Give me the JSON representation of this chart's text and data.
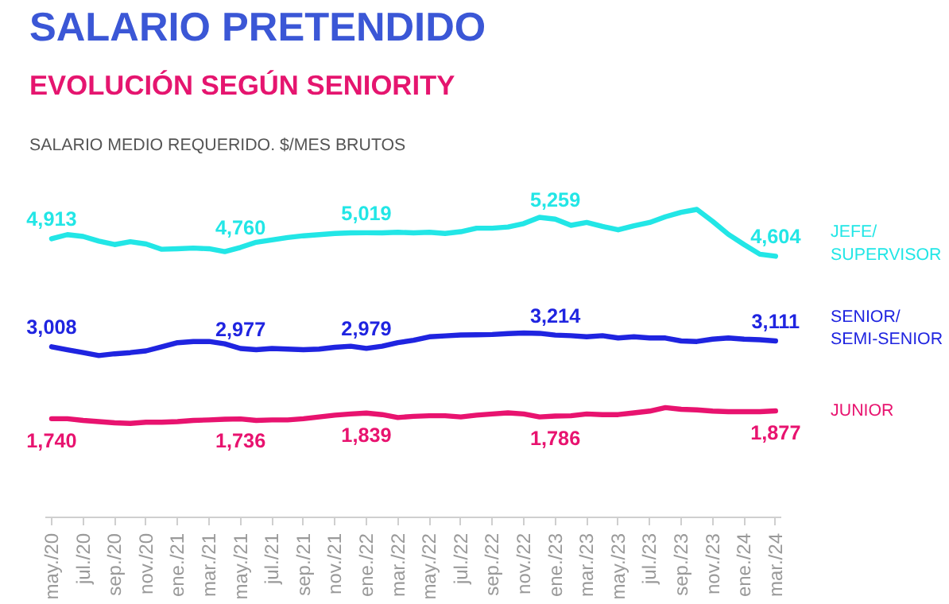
{
  "chart_data": {
    "type": "line",
    "title": "SALARIO PRETENDIDO",
    "subtitle": "EVOLUCIÓN SEGÚN SENIORITY",
    "annotations": [
      "SALARIO MEDIO REQUERIDO. $/MES BRUTOS"
    ],
    "categories": [
      "may./20",
      null,
      "jul./20",
      null,
      "sep./20",
      null,
      "nov./20",
      null,
      "ene./21",
      null,
      "mar./21",
      null,
      "may./21",
      null,
      "jul./21",
      null,
      "sep./21",
      null,
      "nov./21",
      null,
      "ene./22",
      null,
      "mar./22",
      null,
      "may./22",
      null,
      "jul./22",
      null,
      "sep./22",
      null,
      "nov./22",
      null,
      "ene./23",
      null,
      "mar./23",
      null,
      "may./23",
      null,
      "jul./23",
      null,
      "sep./23",
      null,
      "nov./23",
      null,
      "ene./24",
      null,
      "mar./24"
    ],
    "series": [
      {
        "name": "JEFE/\nSUPERVISOR",
        "color": "#22e6e6",
        "values": [
          4913,
          4985,
          4954,
          4872,
          4810,
          4861,
          4820,
          4727,
          4737,
          4748,
          4737,
          4686,
          4760,
          4851,
          4892,
          4934,
          4965,
          4985,
          5006,
          5016,
          5019,
          5016,
          5027,
          5016,
          5027,
          5006,
          5037,
          5099,
          5099,
          5120,
          5180,
          5290,
          5259,
          5150,
          5200,
          5130,
          5070,
          5140,
          5200,
          5300,
          5380,
          5430,
          5220,
          4990,
          4810,
          4640,
          4604
        ],
        "value_labels": [
          "4,913",
          null,
          null,
          null,
          null,
          null,
          null,
          null,
          null,
          null,
          null,
          null,
          "4,760",
          null,
          null,
          null,
          null,
          null,
          null,
          null,
          "5,019",
          null,
          null,
          null,
          null,
          null,
          null,
          null,
          null,
          null,
          null,
          null,
          "5,259",
          null,
          null,
          null,
          null,
          null,
          null,
          null,
          null,
          null,
          null,
          null,
          null,
          null,
          "4,604"
        ]
      },
      {
        "name": "SENIOR/\nSEMI-SENIOR",
        "color": "#1f24e0",
        "values": [
          3008,
          2956,
          2905,
          2853,
          2884,
          2905,
          2936,
          3008,
          3080,
          3101,
          3101,
          3060,
          2977,
          2956,
          2977,
          2967,
          2956,
          2967,
          2998,
          3018,
          2979,
          3018,
          3080,
          3122,
          3184,
          3200,
          3215,
          3220,
          3225,
          3240,
          3250,
          3245,
          3214,
          3204,
          3184,
          3204,
          3163,
          3184,
          3163,
          3163,
          3111,
          3101,
          3142,
          3163,
          3142,
          3132,
          3111
        ],
        "value_labels": [
          "3,008",
          null,
          null,
          null,
          null,
          null,
          null,
          null,
          null,
          null,
          null,
          null,
          "2,977",
          null,
          null,
          null,
          null,
          null,
          null,
          null,
          "2,979",
          null,
          null,
          null,
          null,
          null,
          null,
          null,
          null,
          null,
          null,
          null,
          "3,214",
          null,
          null,
          null,
          null,
          null,
          null,
          null,
          null,
          null,
          null,
          null,
          null,
          null,
          "3,111"
        ]
      },
      {
        "name": "JUNIOR",
        "color": "#e8136f",
        "values": [
          1740,
          1740,
          1709,
          1688,
          1668,
          1657,
          1678,
          1678,
          1688,
          1709,
          1719,
          1730,
          1736,
          1709,
          1719,
          1719,
          1740,
          1771,
          1802,
          1823,
          1839,
          1812,
          1761,
          1781,
          1792,
          1792,
          1771,
          1802,
          1823,
          1843,
          1823,
          1771,
          1786,
          1792,
          1823,
          1812,
          1812,
          1843,
          1874,
          1936,
          1905,
          1895,
          1874,
          1864,
          1864,
          1864,
          1877
        ],
        "value_labels": [
          "1,740",
          null,
          null,
          null,
          null,
          null,
          null,
          null,
          null,
          null,
          null,
          null,
          "1,736",
          null,
          null,
          null,
          null,
          null,
          null,
          null,
          "1,839",
          null,
          null,
          null,
          null,
          null,
          null,
          null,
          null,
          null,
          null,
          null,
          "1,786",
          null,
          null,
          null,
          null,
          null,
          null,
          null,
          null,
          null,
          null,
          null,
          null,
          null,
          "1,877"
        ]
      }
    ]
  }
}
